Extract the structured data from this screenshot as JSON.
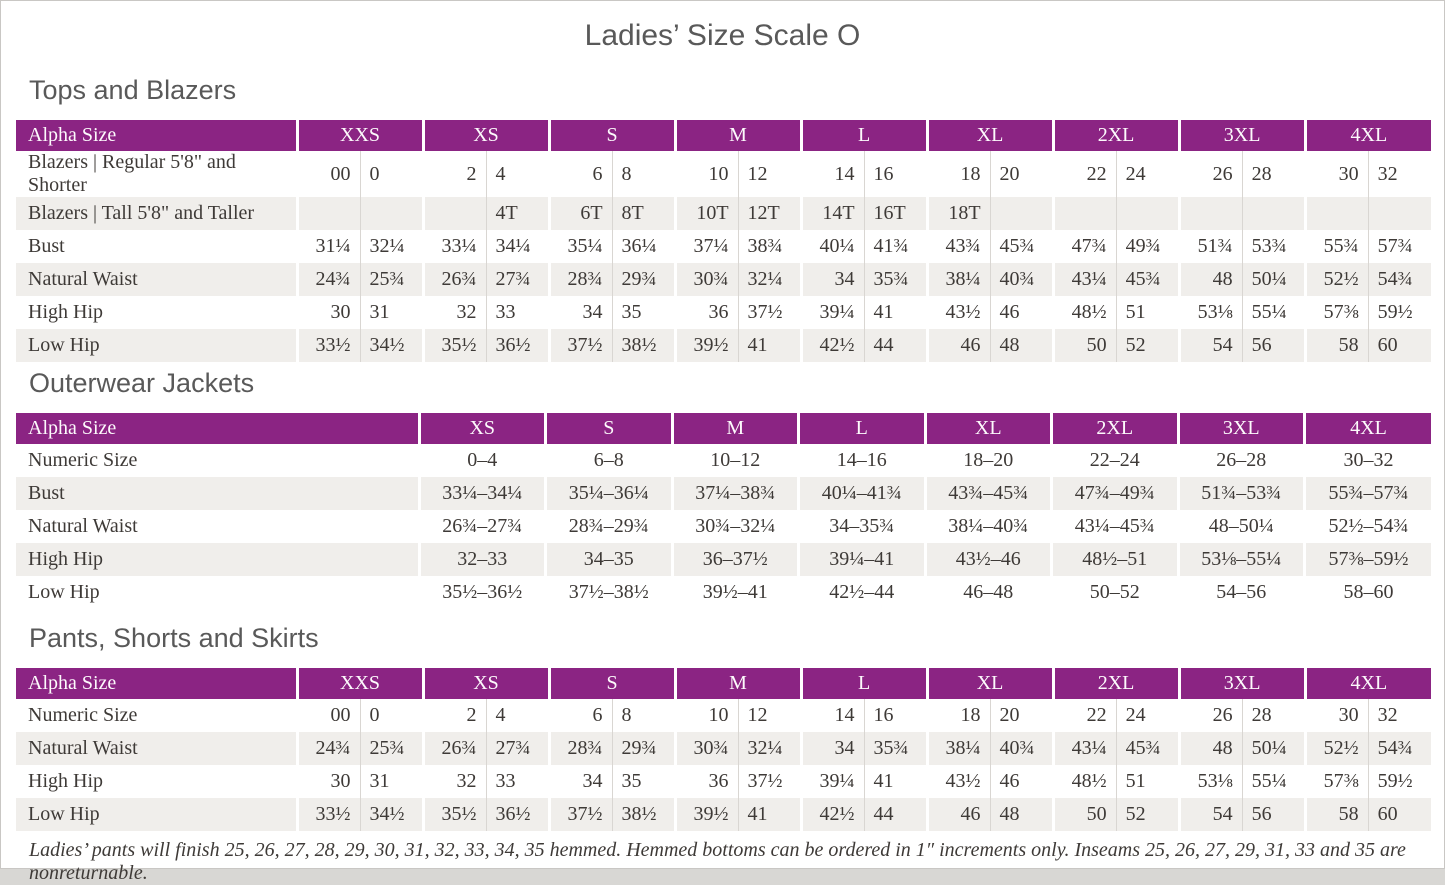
{
  "page_title": "Ladies’ Size Scale O",
  "colors": {
    "header_purple": "#8b2483",
    "header_text": "#fdfafc",
    "alt_row": "#f0eeeb",
    "body_text": "#3e3a37",
    "heading_gray": "#595959"
  },
  "tables": [
    {
      "section_title": "Tops and Blazers",
      "layout": "paired",
      "label_header": "Alpha Size",
      "size_headers": [
        "XXS",
        "XS",
        "S",
        "M",
        "L",
        "XL",
        "2XL",
        "3XL",
        "4XL"
      ],
      "rows": [
        {
          "label": "Blazers  |  Regular 5'8\" and Shorter",
          "pairs": [
            [
              "00",
              "0"
            ],
            [
              "2",
              "4"
            ],
            [
              "6",
              "8"
            ],
            [
              "10",
              "12"
            ],
            [
              "14",
              "16"
            ],
            [
              "18",
              "20"
            ],
            [
              "22",
              "24"
            ],
            [
              "26",
              "28"
            ],
            [
              "30",
              "32"
            ]
          ]
        },
        {
          "label": "Blazers  |  Tall 5'8\" and Taller",
          "pairs": [
            [
              "",
              ""
            ],
            [
              "",
              "4T"
            ],
            [
              "6T",
              "8T"
            ],
            [
              "10T",
              "12T"
            ],
            [
              "14T",
              "16T"
            ],
            [
              "18T",
              ""
            ],
            [
              "",
              ""
            ],
            [
              "",
              ""
            ],
            [
              "",
              ""
            ]
          ]
        },
        {
          "label": "Bust",
          "pairs": [
            [
              "31¼",
              "32¼"
            ],
            [
              "33¼",
              "34¼"
            ],
            [
              "35¼",
              "36¼"
            ],
            [
              "37¼",
              "38¾"
            ],
            [
              "40¼",
              "41¾"
            ],
            [
              "43¾",
              "45¾"
            ],
            [
              "47¾",
              "49¾"
            ],
            [
              "51¾",
              "53¾"
            ],
            [
              "55¾",
              "57¾"
            ]
          ]
        },
        {
          "label": "Natural Waist",
          "pairs": [
            [
              "24¾",
              "25¾"
            ],
            [
              "26¾",
              "27¾"
            ],
            [
              "28¾",
              "29¾"
            ],
            [
              "30¾",
              "32¼"
            ],
            [
              "34",
              "35¾"
            ],
            [
              "38¼",
              "40¾"
            ],
            [
              "43¼",
              "45¾"
            ],
            [
              "48",
              "50¼"
            ],
            [
              "52½",
              "54¾"
            ]
          ]
        },
        {
          "label": "High Hip",
          "pairs": [
            [
              "30",
              "31"
            ],
            [
              "32",
              "33"
            ],
            [
              "34",
              "35"
            ],
            [
              "36",
              "37½"
            ],
            [
              "39¼",
              "41"
            ],
            [
              "43½",
              "46"
            ],
            [
              "48½",
              "51"
            ],
            [
              "53⅛",
              "55¼"
            ],
            [
              "57⅜",
              "59½"
            ]
          ]
        },
        {
          "label": "Low Hip",
          "pairs": [
            [
              "33½",
              "34½"
            ],
            [
              "35½",
              "36½"
            ],
            [
              "37½",
              "38½"
            ],
            [
              "39½",
              "41"
            ],
            [
              "42½",
              "44"
            ],
            [
              "46",
              "48"
            ],
            [
              "50",
              "52"
            ],
            [
              "54",
              "56"
            ],
            [
              "58",
              "60"
            ]
          ]
        }
      ]
    },
    {
      "section_title": "Outerwear Jackets",
      "layout": "single",
      "label_header": "Alpha Size",
      "size_headers": [
        "XS",
        "S",
        "M",
        "L",
        "XL",
        "2XL",
        "3XL",
        "4XL"
      ],
      "rows": [
        {
          "label": "Numeric Size",
          "values": [
            "0–4",
            "6–8",
            "10–12",
            "14–16",
            "18–20",
            "22–24",
            "26–28",
            "30–32"
          ]
        },
        {
          "label": "Bust",
          "values": [
            "33¼–34¼",
            "35¼–36¼",
            "37¼–38¾",
            "40¼–41¾",
            "43¾–45¾",
            "47¾–49¾",
            "51¾–53¾",
            "55¾–57¾"
          ]
        },
        {
          "label": "Natural Waist",
          "values": [
            "26¾–27¾",
            "28¾–29¾",
            "30¾–32¼",
            "34–35¾",
            "38¼–40¾",
            "43¼–45¾",
            "48–50¼",
            "52½–54¾"
          ]
        },
        {
          "label": "High Hip",
          "values": [
            "32–33",
            "34–35",
            "36–37½",
            "39¼–41",
            "43½–46",
            "48½–51",
            "53⅛–55¼",
            "57⅜–59½"
          ]
        },
        {
          "label": "Low Hip",
          "values": [
            "35½–36½",
            "37½–38½",
            "39½–41",
            "42½–44",
            "46–48",
            "50–52",
            "54–56",
            "58–60"
          ]
        }
      ]
    },
    {
      "section_title": "Pants, Shorts and Skirts",
      "layout": "paired",
      "label_header": "Alpha Size",
      "size_headers": [
        "XXS",
        "XS",
        "S",
        "M",
        "L",
        "XL",
        "2XL",
        "3XL",
        "4XL"
      ],
      "rows": [
        {
          "label": "Numeric Size",
          "pairs": [
            [
              "00",
              "0"
            ],
            [
              "2",
              "4"
            ],
            [
              "6",
              "8"
            ],
            [
              "10",
              "12"
            ],
            [
              "14",
              "16"
            ],
            [
              "18",
              "20"
            ],
            [
              "22",
              "24"
            ],
            [
              "26",
              "28"
            ],
            [
              "30",
              "32"
            ]
          ]
        },
        {
          "label": "Natural Waist",
          "pairs": [
            [
              "24¾",
              "25¾"
            ],
            [
              "26¾",
              "27¾"
            ],
            [
              "28¾",
              "29¾"
            ],
            [
              "30¾",
              "32¼"
            ],
            [
              "34",
              "35¾"
            ],
            [
              "38¼",
              "40¾"
            ],
            [
              "43¼",
              "45¾"
            ],
            [
              "48",
              "50¼"
            ],
            [
              "52½",
              "54¾"
            ]
          ]
        },
        {
          "label": "High Hip",
          "pairs": [
            [
              "30",
              "31"
            ],
            [
              "32",
              "33"
            ],
            [
              "34",
              "35"
            ],
            [
              "36",
              "37½"
            ],
            [
              "39¼",
              "41"
            ],
            [
              "43½",
              "46"
            ],
            [
              "48½",
              "51"
            ],
            [
              "53⅛",
              "55¼"
            ],
            [
              "57⅜",
              "59½"
            ]
          ]
        },
        {
          "label": "Low Hip",
          "pairs": [
            [
              "33½",
              "34½"
            ],
            [
              "35½",
              "36½"
            ],
            [
              "37½",
              "38½"
            ],
            [
              "39½",
              "41"
            ],
            [
              "42½",
              "44"
            ],
            [
              "46",
              "48"
            ],
            [
              "50",
              "52"
            ],
            [
              "54",
              "56"
            ],
            [
              "58",
              "60"
            ]
          ]
        }
      ]
    }
  ],
  "footnote": "Ladies’ pants will finish 25, 26, 27, 28, 29, 30, 31, 32, 33, 34, 35 hemmed. Hemmed bottoms can be ordered in 1″ increments only. Inseams 25, 26, 27, 29, 31, 33 and 35 are nonreturnable."
}
